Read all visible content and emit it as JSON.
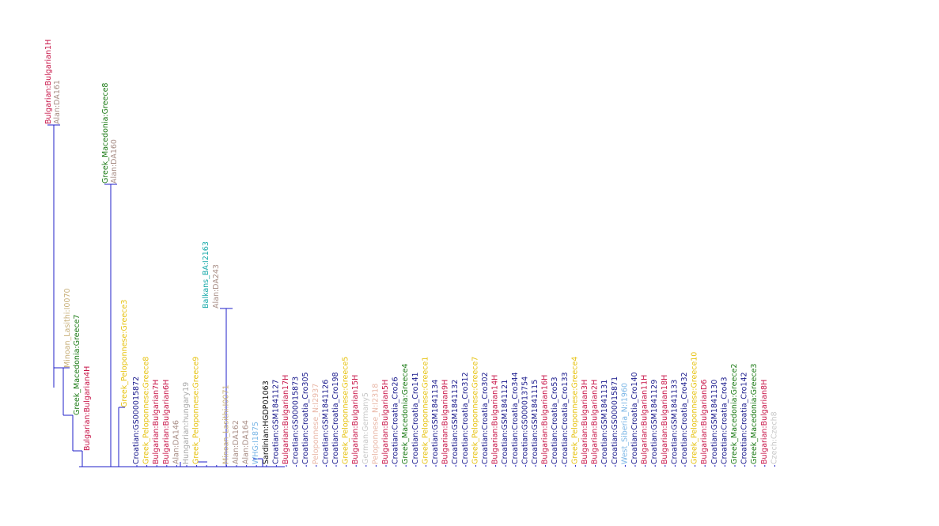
{
  "colors": {
    "branch": "#1f1fc8",
    "bulgarian": "#c8174a",
    "alan": "#a88e86",
    "greek_macedonia": "#1a7a14",
    "greek_peloponnese": "#e6c20f",
    "minoan": "#c8b07a",
    "croatian": "#1a1a8c",
    "hungarian": "#a9a9a9",
    "balkans": "#17a9a9",
    "whg": "#7ab6e6",
    "sardinian": "#111111",
    "peloponnese_nl": "#e9b8a8",
    "german": "#c9c9c9",
    "west_siberia": "#7ab6e6",
    "czech": "#c9c9c9"
  },
  "tree": {
    "upper_clades": [
      {
        "tips": [
          {
            "label": "Bulgarian:Bulgarian1H",
            "color": "bulgarian"
          },
          {
            "label": "Alan:DA161",
            "color": "alan"
          }
        ]
      },
      {
        "tips": [
          {
            "label": "Greek_Macedonia:Greece8",
            "color": "greek_macedonia"
          },
          {
            "label": "Alan:DA160",
            "color": "alan"
          }
        ]
      }
    ],
    "leaves": [
      {
        "label": "Minoan_Lasithi:I0070",
        "color": "minoan"
      },
      {
        "label": "Greek_Macedonia:Greece7",
        "color": "greek_macedonia"
      },
      {
        "label": "Bulgarian:Bulgarian4H",
        "color": "bulgarian"
      },
      {
        "label": "Greek_Peloponnese:Greece3",
        "color": "greek_peloponnese"
      },
      {
        "label": "Croatian:GS000015872",
        "color": "croatian"
      },
      {
        "label": "Greek_Peloponnese:Greece8",
        "color": "greek_peloponnese"
      },
      {
        "label": "Bulgarian:Bulgarian7H",
        "color": "bulgarian"
      },
      {
        "label": "Bulgarian:Bulgarian6H",
        "color": "bulgarian"
      },
      {
        "label": "Alan:DA146",
        "color": "alan"
      },
      {
        "label": "Hungarian:hungary19",
        "color": "hungarian"
      },
      {
        "label": "Greek_Peloponnese:Greece9",
        "color": "greek_peloponnese"
      },
      {
        "label": "Balkans_BA:I2163",
        "color": "balkans"
      },
      {
        "label": "Alan:DA243",
        "color": "alan"
      },
      {
        "label": "Minoan_Lasithi:I0071",
        "color": "minoan"
      },
      {
        "label": "Alan:DA162",
        "color": "alan"
      },
      {
        "label": "Alan:DA164",
        "color": "alan"
      },
      {
        "label": "WHG:I1875",
        "color": "whg"
      },
      {
        "label": "Sardinian:HGDP01063",
        "color": "sardinian"
      },
      {
        "label": "Croatian:GSM1841127",
        "color": "croatian"
      },
      {
        "label": "Bulgarian:Bulgarian17H",
        "color": "bulgarian"
      },
      {
        "label": "Croatian:GS000015873",
        "color": "croatian"
      },
      {
        "label": "Croatian:Croatia_Cro305",
        "color": "croatian"
      },
      {
        "label": "Peloponnese_N:I2937",
        "color": "peloponnese_nl"
      },
      {
        "label": "Croatian:GSM1841126",
        "color": "croatian"
      },
      {
        "label": "Croatian:Croatia_Cro198",
        "color": "croatian"
      },
      {
        "label": "Greek_Peloponnese:Greece5",
        "color": "greek_peloponnese"
      },
      {
        "label": "Bulgarian:Bulgarian15H",
        "color": "bulgarian"
      },
      {
        "label": "German:Germany5",
        "color": "german"
      },
      {
        "label": "Peloponnese_N:I2318",
        "color": "peloponnese_nl"
      },
      {
        "label": "Bulgarian:Bulgarian5H",
        "color": "bulgarian"
      },
      {
        "label": "Croatian:Croatia_Cro26",
        "color": "croatian"
      },
      {
        "label": "Greek_Macedonia:Greece4",
        "color": "greek_macedonia"
      },
      {
        "label": "Croatian:Croatia_Cro141",
        "color": "croatian"
      },
      {
        "label": "Greek_Peloponnese:Greece1",
        "color": "greek_peloponnese"
      },
      {
        "label": "Croatian:GSM1841134",
        "color": "croatian"
      },
      {
        "label": "Bulgarian:Bulgarian9H",
        "color": "bulgarian"
      },
      {
        "label": "Croatian:GSM1841132",
        "color": "croatian"
      },
      {
        "label": "Croatian:Croatia_Cro312",
        "color": "croatian"
      },
      {
        "label": "Greek_Peloponnese:Greece7",
        "color": "greek_peloponnese"
      },
      {
        "label": "Croatian:Croatia_Cro302",
        "color": "croatian"
      },
      {
        "label": "Bulgarian:Bulgarian14H",
        "color": "bulgarian"
      },
      {
        "label": "Croatian:GSM1841121",
        "color": "croatian"
      },
      {
        "label": "Croatian:Croatia_Cro344",
        "color": "croatian"
      },
      {
        "label": "Croatian:GS000013754",
        "color": "croatian"
      },
      {
        "label": "Croatian:GSM1841115",
        "color": "croatian"
      },
      {
        "label": "Bulgarian:Bulgarian16H",
        "color": "bulgarian"
      },
      {
        "label": "Croatian:Croatia_Cro53",
        "color": "croatian"
      },
      {
        "label": "Croatian:Croatia_Cro133",
        "color": "croatian"
      },
      {
        "label": "Greek_Peloponnese:Greece4",
        "color": "greek_peloponnese"
      },
      {
        "label": "Bulgarian:Bulgarian3H",
        "color": "bulgarian"
      },
      {
        "label": "Bulgarian:Bulgarian2H",
        "color": "bulgarian"
      },
      {
        "label": "Croatian:GSM1841131",
        "color": "croatian"
      },
      {
        "label": "Croatian:GS000015871",
        "color": "croatian"
      },
      {
        "label": "West_Siberia_N:I1960",
        "color": "west_siberia"
      },
      {
        "label": "Croatian:Croatia_Cro140",
        "color": "croatian"
      },
      {
        "label": "Bulgarian:Bulgarian11H",
        "color": "bulgarian"
      },
      {
        "label": "Croatian:GSM1841129",
        "color": "croatian"
      },
      {
        "label": "Bulgarian:Bulgarian18H",
        "color": "bulgarian"
      },
      {
        "label": "Croatian:GSM1841133",
        "color": "croatian"
      },
      {
        "label": "Croatian:Croatia_Cro432",
        "color": "croatian"
      },
      {
        "label": "Greek_Peloponnese:Greece10",
        "color": "greek_peloponnese"
      },
      {
        "label": "Bulgarian:BulgarianD6",
        "color": "bulgarian"
      },
      {
        "label": "Croatian:GSM1841130",
        "color": "croatian"
      },
      {
        "label": "Croatian:Croatia_Cro43",
        "color": "croatian"
      },
      {
        "label": "Greek_Macedonia:Greece2",
        "color": "greek_macedonia"
      },
      {
        "label": "Croatian:Croatia_Cro142",
        "color": "croatian"
      },
      {
        "label": "Greek_Macedonia:Greece3",
        "color": "greek_macedonia"
      },
      {
        "label": "Bulgarian:Bulgarian8H",
        "color": "bulgarian"
      },
      {
        "label": "Czech:Czech8",
        "color": "czech"
      }
    ]
  }
}
